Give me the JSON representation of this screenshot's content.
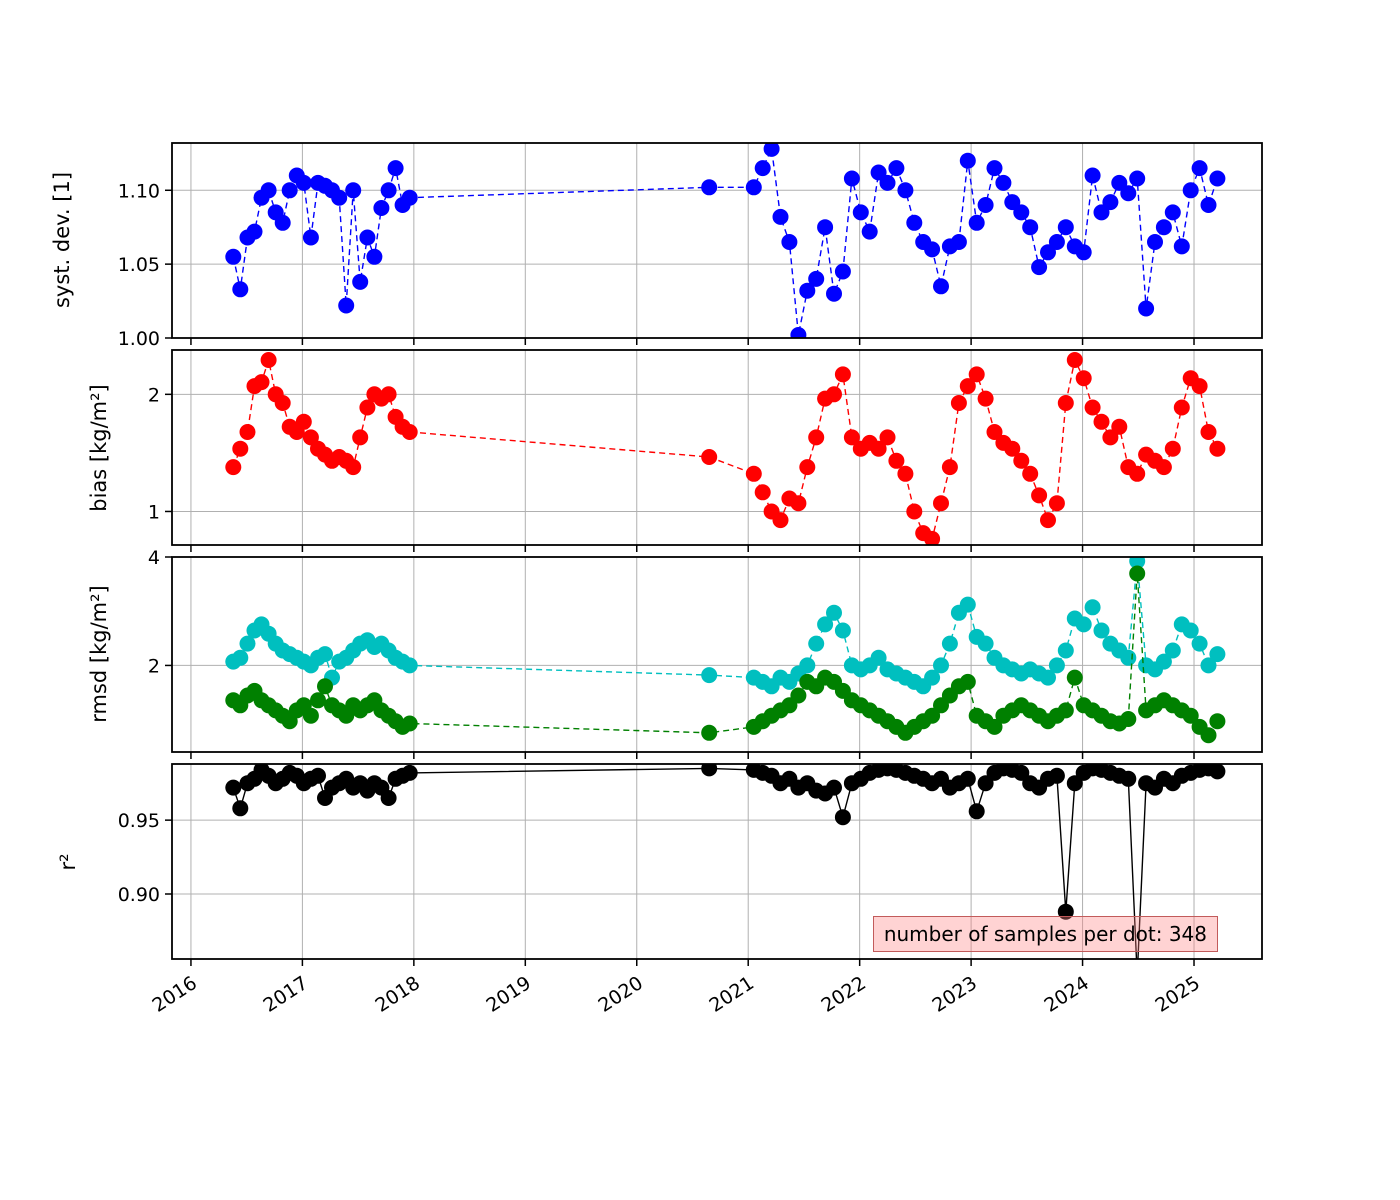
{
  "figure": {
    "background": "#ffffff"
  },
  "annotation": {
    "text": "number of samples per dot: 348",
    "bg": "rgba(255,130,130,0.35)",
    "border": "#c25b5b"
  },
  "x_axis": {
    "lim": [
      2015.83,
      2025.61
    ],
    "ticks": [
      2016,
      2017,
      2018,
      2019,
      2020,
      2021,
      2022,
      2023,
      2024,
      2025
    ],
    "labels": [
      "2016",
      "2017",
      "2018",
      "2019",
      "2020",
      "2021",
      "2022",
      "2023",
      "2024",
      "2025"
    ]
  },
  "x_values": [
    2016.38,
    2016.443,
    2016.507,
    2016.57,
    2016.633,
    2016.697,
    2016.76,
    2016.823,
    2016.886,
    2016.95,
    2017.013,
    2017.076,
    2017.14,
    2017.203,
    2017.266,
    2017.33,
    2017.393,
    2017.456,
    2017.519,
    2017.583,
    2017.646,
    2017.709,
    2017.773,
    2017.836,
    2017.899,
    2017.963,
    2020.65,
    2021.05,
    2021.13,
    2021.21,
    2021.29,
    2021.37,
    2021.45,
    2021.53,
    2021.61,
    2021.69,
    2021.77,
    2021.85,
    2021.93,
    2022.01,
    2022.09,
    2022.17,
    2022.25,
    2022.33,
    2022.41,
    2022.49,
    2022.57,
    2022.65,
    2022.73,
    2022.81,
    2022.89,
    2022.97,
    2023.05,
    2023.13,
    2023.21,
    2023.29,
    2023.37,
    2023.45,
    2023.53,
    2023.61,
    2023.69,
    2023.77,
    2023.85,
    2023.93,
    2024.01,
    2024.09,
    2024.17,
    2024.25,
    2024.33,
    2024.41,
    2024.49,
    2024.57,
    2024.65,
    2024.73,
    2024.81,
    2024.89,
    2024.97,
    2025.05,
    2025.13,
    2025.21
  ],
  "chart_data": [
    {
      "type": "line",
      "name": "syst-dev",
      "ylabel": "syst. dev. [1]",
      "yscale": "linear",
      "ylim": [
        1.0,
        1.132
      ],
      "yticks": [
        1.0,
        1.05,
        1.1
      ],
      "ytick_labels": [
        "1.00",
        "1.05",
        "1.10"
      ],
      "grid": true,
      "series": [
        {
          "name": "syst-dev",
          "color": "#0000ff",
          "linestyle": "dashed",
          "y": [
            1.055,
            1.033,
            1.068,
            1.072,
            1.095,
            1.1,
            1.085,
            1.078,
            1.1,
            1.11,
            1.105,
            1.068,
            1.105,
            1.103,
            1.1,
            1.095,
            1.022,
            1.1,
            1.038,
            1.068,
            1.055,
            1.088,
            1.1,
            1.115,
            1.09,
            1.095,
            1.102,
            1.102,
            1.115,
            1.128,
            1.082,
            1.065,
            1.002,
            1.032,
            1.04,
            1.075,
            1.03,
            1.045,
            1.108,
            1.085,
            1.072,
            1.112,
            1.105,
            1.115,
            1.1,
            1.078,
            1.065,
            1.06,
            1.035,
            1.062,
            1.065,
            1.12,
            1.078,
            1.09,
            1.115,
            1.105,
            1.092,
            1.085,
            1.075,
            1.048,
            1.058,
            1.065,
            1.075,
            1.062,
            1.058,
            1.11,
            1.085,
            1.092,
            1.105,
            1.098,
            1.108,
            1.02,
            1.065,
            1.075,
            1.085,
            1.062,
            1.1,
            1.115,
            1.09,
            1.108
          ]
        }
      ]
    },
    {
      "type": "line",
      "name": "bias",
      "ylabel": "bias [kg/m²]",
      "yscale": "log",
      "ylim": [
        0.82,
        2.6
      ],
      "yticks": [
        1,
        2
      ],
      "ytick_labels": [
        "1",
        "2"
      ],
      "grid": true,
      "series": [
        {
          "name": "bias",
          "color": "#ff0000",
          "linestyle": "dashed",
          "y": [
            1.3,
            1.45,
            1.6,
            2.1,
            2.15,
            2.45,
            2.0,
            1.9,
            1.65,
            1.6,
            1.7,
            1.55,
            1.45,
            1.4,
            1.35,
            1.38,
            1.35,
            1.3,
            1.55,
            1.85,
            2.0,
            1.95,
            2.0,
            1.75,
            1.65,
            1.6,
            1.38,
            1.25,
            1.12,
            1.0,
            0.95,
            1.08,
            1.05,
            1.3,
            1.55,
            1.95,
            2.0,
            2.25,
            1.55,
            1.45,
            1.5,
            1.45,
            1.55,
            1.35,
            1.25,
            1.0,
            0.88,
            0.85,
            1.05,
            1.3,
            1.9,
            2.1,
            2.25,
            1.95,
            1.6,
            1.5,
            1.45,
            1.35,
            1.25,
            1.1,
            0.95,
            1.05,
            1.9,
            2.45,
            2.2,
            1.85,
            1.7,
            1.55,
            1.65,
            1.3,
            1.25,
            1.4,
            1.35,
            1.3,
            1.45,
            1.85,
            2.2,
            2.1,
            1.6,
            1.45
          ]
        }
      ]
    },
    {
      "type": "line",
      "name": "rmsd",
      "ylabel": "rmsd [kg/m²]",
      "yscale": "log",
      "ylim": [
        1.15,
        4.0
      ],
      "yticks": [
        2,
        4
      ],
      "ytick_labels": [
        "2",
        "4"
      ],
      "grid": true,
      "series": [
        {
          "name": "rmsd-cyan",
          "color": "#00bfbf",
          "linestyle": "dashed",
          "y": [
            2.05,
            2.1,
            2.3,
            2.5,
            2.6,
            2.45,
            2.3,
            2.2,
            2.15,
            2.1,
            2.05,
            2.0,
            2.1,
            2.15,
            1.85,
            2.05,
            2.1,
            2.2,
            2.3,
            2.35,
            2.25,
            2.3,
            2.2,
            2.1,
            2.05,
            2.0,
            1.88,
            1.85,
            1.8,
            1.75,
            1.85,
            1.8,
            1.9,
            2.0,
            2.3,
            2.6,
            2.8,
            2.5,
            2.0,
            1.95,
            2.0,
            2.1,
            1.95,
            1.9,
            1.85,
            1.8,
            1.75,
            1.85,
            2.0,
            2.3,
            2.8,
            2.95,
            2.4,
            2.3,
            2.1,
            2.0,
            1.95,
            1.9,
            1.95,
            1.9,
            1.85,
            2.0,
            2.2,
            2.7,
            2.6,
            2.9,
            2.5,
            2.3,
            2.2,
            2.1,
            3.9,
            2.0,
            1.95,
            2.05,
            2.2,
            2.6,
            2.5,
            2.3,
            2.0,
            2.15
          ]
        },
        {
          "name": "rmsd-green",
          "color": "#008000",
          "linestyle": "dashed",
          "y": [
            1.6,
            1.55,
            1.65,
            1.7,
            1.6,
            1.55,
            1.5,
            1.45,
            1.4,
            1.5,
            1.55,
            1.45,
            1.6,
            1.75,
            1.55,
            1.5,
            1.45,
            1.55,
            1.5,
            1.55,
            1.6,
            1.5,
            1.45,
            1.4,
            1.35,
            1.38,
            1.3,
            1.35,
            1.4,
            1.45,
            1.5,
            1.55,
            1.65,
            1.8,
            1.75,
            1.85,
            1.8,
            1.7,
            1.6,
            1.55,
            1.5,
            1.45,
            1.4,
            1.35,
            1.3,
            1.35,
            1.4,
            1.45,
            1.55,
            1.65,
            1.75,
            1.8,
            1.45,
            1.4,
            1.35,
            1.45,
            1.5,
            1.55,
            1.5,
            1.45,
            1.4,
            1.45,
            1.5,
            1.85,
            1.55,
            1.5,
            1.45,
            1.4,
            1.38,
            1.42,
            3.6,
            1.5,
            1.55,
            1.6,
            1.55,
            1.5,
            1.45,
            1.35,
            1.28,
            1.4
          ]
        }
      ]
    },
    {
      "type": "line",
      "name": "r2",
      "ylabel": "r²",
      "yscale": "linear",
      "ylim": [
        0.856,
        0.988
      ],
      "yticks": [
        0.9,
        0.95
      ],
      "ytick_labels": [
        "0.90",
        "0.95"
      ],
      "grid": true,
      "series": [
        {
          "name": "r2",
          "color": "#000000",
          "linestyle": "solid",
          "y": [
            0.972,
            0.958,
            0.975,
            0.978,
            0.984,
            0.98,
            0.975,
            0.978,
            0.982,
            0.98,
            0.975,
            0.978,
            0.98,
            0.965,
            0.972,
            0.975,
            0.978,
            0.972,
            0.975,
            0.97,
            0.975,
            0.972,
            0.965,
            0.978,
            0.98,
            0.982,
            0.985,
            0.984,
            0.982,
            0.98,
            0.975,
            0.978,
            0.972,
            0.975,
            0.97,
            0.968,
            0.972,
            0.952,
            0.975,
            0.978,
            0.982,
            0.984,
            0.985,
            0.984,
            0.982,
            0.98,
            0.978,
            0.975,
            0.978,
            0.972,
            0.975,
            0.978,
            0.956,
            0.975,
            0.982,
            0.985,
            0.984,
            0.982,
            0.975,
            0.972,
            0.978,
            0.98,
            0.888,
            0.975,
            0.982,
            0.985,
            0.984,
            0.982,
            0.98,
            0.978,
            0.845,
            0.975,
            0.972,
            0.978,
            0.975,
            0.98,
            0.982,
            0.984,
            0.985,
            0.983
          ]
        }
      ]
    }
  ]
}
